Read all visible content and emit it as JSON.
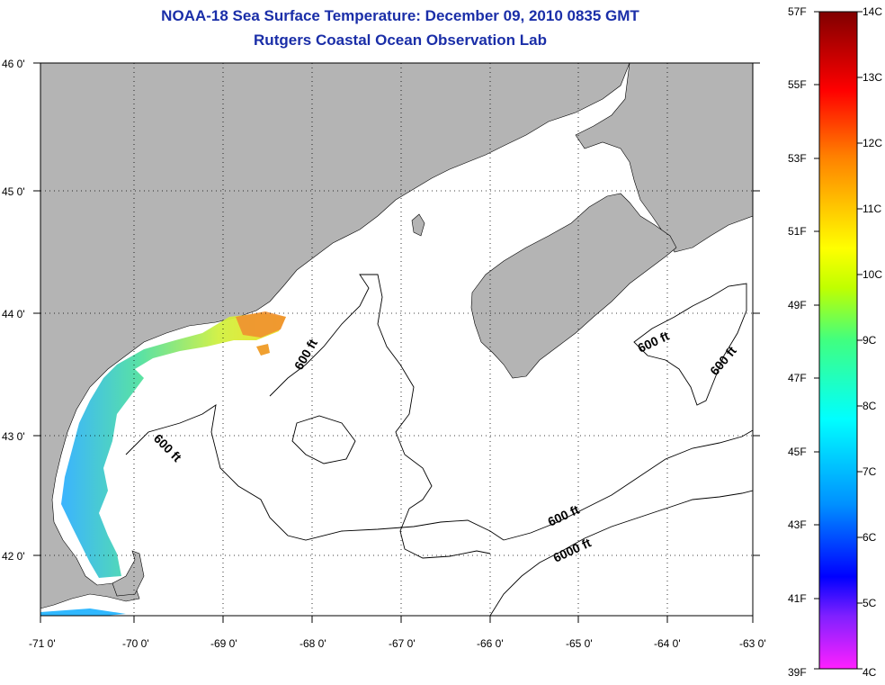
{
  "title": {
    "line1": "NOAA-18 Sea Surface Temperature:  December 09, 2010 0835 GMT",
    "line2": "Rutgers Coastal Ocean Observation Lab"
  },
  "map": {
    "lon_ticks": [
      "-71 0'",
      "-70 0'",
      "-69 0'",
      "-68 0'",
      "-67 0'",
      "-66 0'",
      "-65 0'",
      "-64 0'",
      "-63 0'"
    ],
    "lat_ticks": [
      "46 0'",
      "45 0'",
      "44 0'",
      "43 0'",
      "42 0'"
    ],
    "contour_labels": [
      "600 ft",
      "600 ft",
      "600 ft",
      "600 ft",
      "600 ft",
      "6000 ft"
    ],
    "land_color": "#b4b4b4",
    "grid": "dotted"
  },
  "colorbar": {
    "fahrenheit_labels": [
      "57F",
      "55F",
      "53F",
      "51F",
      "49F",
      "47F",
      "45F",
      "43F",
      "41F",
      "39F"
    ],
    "celsius_labels": [
      "14C",
      "13C",
      "12C",
      "11C",
      "10C",
      "9C",
      "8C",
      "7C",
      "6C",
      "5C",
      "4C"
    ],
    "colors": [
      "#ff20ff",
      "#8020ff",
      "#0000ff",
      "#0090ff",
      "#00ffff",
      "#40ff80",
      "#c0ff00",
      "#ffff00",
      "#ff8000",
      "#ff0000",
      "#800000"
    ]
  }
}
